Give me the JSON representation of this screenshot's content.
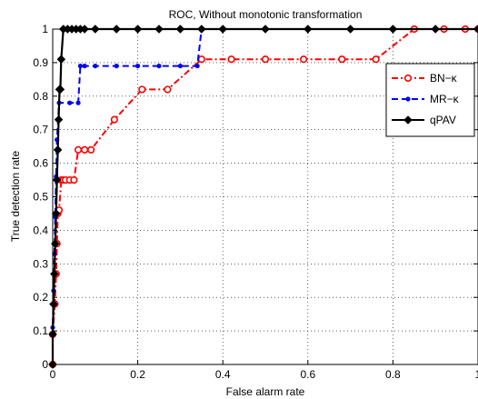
{
  "chart_data": {
    "type": "line",
    "title": "ROC, Without monotonic transformation",
    "xlabel": "False alarm rate",
    "ylabel": "True detection rate",
    "xlim": [
      0,
      1
    ],
    "ylim": [
      0,
      1
    ],
    "xticks": [
      "0",
      "0.2",
      "0.4",
      "0.6",
      "0.8",
      "1"
    ],
    "yticks": [
      "0",
      "0.1",
      "0.2",
      "0.3",
      "0.4",
      "0.5",
      "0.6",
      "0.7",
      "0.8",
      "0.9",
      "1"
    ],
    "grid": true,
    "legend_position": "top-right",
    "series": [
      {
        "name": "BN−κ",
        "color": "#ff0000",
        "line_style": "dash-dot",
        "marker": "circle",
        "x": [
          0,
          0,
          0.005,
          0.008,
          0.01,
          0.012,
          0.015,
          0.02,
          0.025,
          0.03,
          0.04,
          0.05,
          0.06,
          0.075,
          0.09,
          0.145,
          0.21,
          0.27,
          0.35,
          0.42,
          0.5,
          0.59,
          0.68,
          0.76,
          0.85,
          0.92,
          0.97,
          1.0
        ],
        "y": [
          0,
          0.09,
          0.18,
          0.27,
          0.36,
          0.45,
          0.46,
          0.55,
          0.55,
          0.55,
          0.55,
          0.55,
          0.64,
          0.64,
          0.64,
          0.73,
          0.82,
          0.82,
          0.91,
          0.91,
          0.91,
          0.91,
          0.91,
          0.91,
          1.0,
          1.0,
          1.0,
          1.0
        ]
      },
      {
        "name": "MR−κ",
        "color": "#0000ff",
        "line_style": "dashed",
        "marker": "dot",
        "x": [
          0,
          0,
          0.002,
          0.004,
          0.006,
          0.008,
          0.01,
          0.015,
          0.04,
          0.06,
          0.065,
          0.075,
          0.1,
          0.15,
          0.2,
          0.25,
          0.3,
          0.34,
          0.35,
          0.4,
          0.5,
          0.6,
          0.7,
          0.8,
          0.9,
          1.0
        ],
        "y": [
          0,
          0.11,
          0.22,
          0.33,
          0.44,
          0.56,
          0.67,
          0.78,
          0.78,
          0.78,
          0.89,
          0.89,
          0.89,
          0.89,
          0.89,
          0.89,
          0.89,
          0.89,
          1.0,
          1.0,
          1.0,
          1.0,
          1.0,
          1.0,
          1.0,
          1.0
        ]
      },
      {
        "name": "qPAV",
        "color": "#000000",
        "line_style": "solid",
        "marker": "diamond",
        "x": [
          0,
          0,
          0.002,
          0.004,
          0.006,
          0.008,
          0.01,
          0.012,
          0.014,
          0.016,
          0.018,
          0.02,
          0.025,
          0.035,
          0.045,
          0.055,
          0.065,
          0.075,
          0.1,
          0.15,
          0.2,
          0.25,
          0.3,
          0.35,
          0.4,
          0.5,
          0.6,
          0.7,
          0.8,
          0.9,
          1.0
        ],
        "y": [
          0,
          0.09,
          0.18,
          0.27,
          0.36,
          0.45,
          0.55,
          0.64,
          0.73,
          0.82,
          0.82,
          0.91,
          1.0,
          1.0,
          1.0,
          1.0,
          1.0,
          1.0,
          1.0,
          1.0,
          1.0,
          1.0,
          1.0,
          1.0,
          1.0,
          1.0,
          1.0,
          1.0,
          1.0,
          1.0,
          1.0
        ]
      }
    ]
  }
}
